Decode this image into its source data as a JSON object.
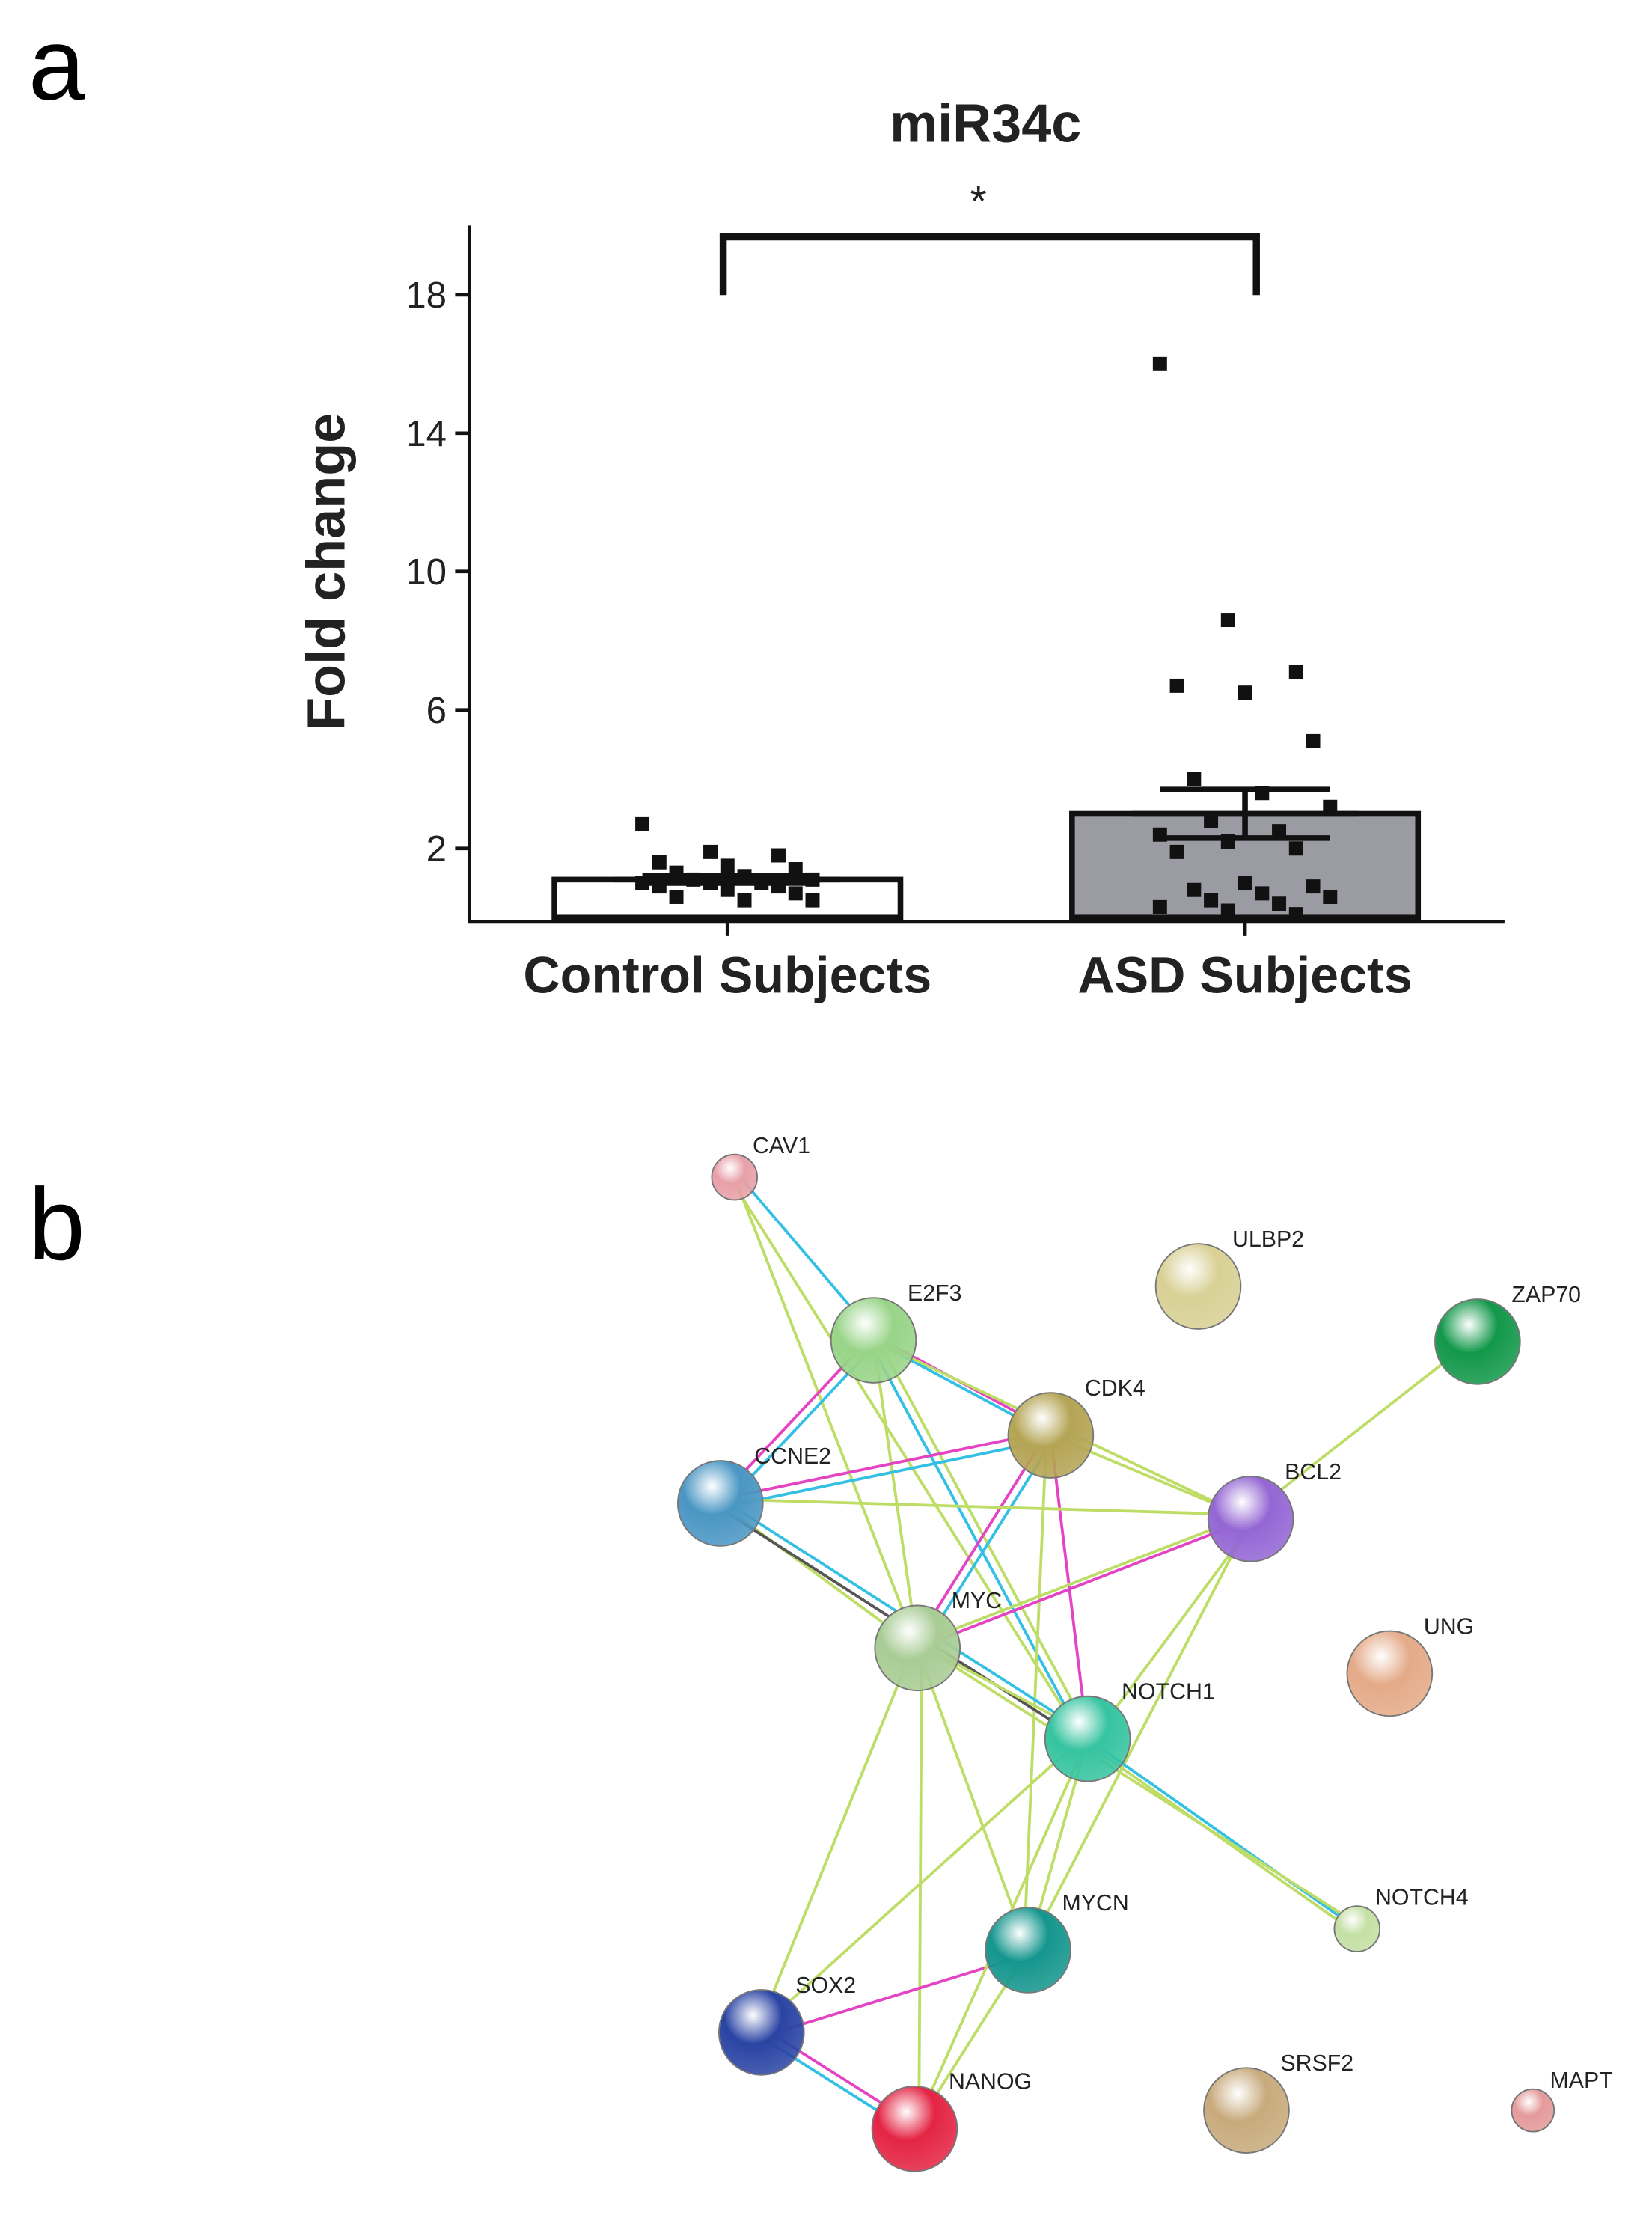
{
  "panel_labels": [
    "a",
    "b"
  ],
  "chart_data": {
    "type": "bar",
    "title": "miR34c",
    "y_label": "Fold change",
    "categories": [
      "Control Subjects",
      "ASD Subjects"
    ],
    "values": [
      1.1,
      3.0
    ],
    "errors": [
      0.1,
      0.7
    ],
    "colors": [
      "#ffffff",
      "#9b9ba3"
    ],
    "points": [
      [
        2.7,
        1.9,
        1.8,
        1.6,
        1.5,
        1.4,
        1.3,
        1.2,
        1.1,
        1.1,
        1.0,
        1.0,
        1.0,
        0.9,
        0.9,
        0.8,
        0.7,
        0.6,
        0.5,
        0.5
      ],
      [
        16,
        8.6,
        7.1,
        6.7,
        6.5,
        5.1,
        4.0,
        3.6,
        3.2,
        2.8,
        2.5,
        2.4,
        2.2,
        2.0,
        1.9,
        1.0,
        0.9,
        0.8,
        0.7,
        0.6,
        0.5,
        0.4,
        0.3,
        0.2,
        0.1
      ]
    ],
    "annotation": "*",
    "ylim": [
      0,
      20
    ],
    "yticks": [
      2,
      6,
      10,
      14,
      18
    ]
  },
  "network": {
    "nodes": [
      {
        "label": "CAV1",
        "color": "#e8a0a8"
      },
      {
        "label": "E2F3",
        "color": "#98d488"
      },
      {
        "label": "ULBP2",
        "color": "#d8d094"
      },
      {
        "label": "ZAP70",
        "color": "#12984a"
      },
      {
        "label": "CDK4",
        "color": "#b4a454"
      },
      {
        "label": "CCNE2",
        "color": "#4a96c4"
      },
      {
        "label": "BCL2",
        "color": "#9466d4"
      },
      {
        "label": "MYC",
        "color": "#a8cc94"
      },
      {
        "label": "UNG",
        "color": "#e4aa88"
      },
      {
        "label": "NOTCH1",
        "color": "#36c4a0"
      },
      {
        "label": "NOTCH4",
        "color": "#c4e0a4"
      },
      {
        "label": "MYCN",
        "color": "#14968e"
      },
      {
        "label": "SOX2",
        "color": "#2a44a4"
      },
      {
        "label": "NANOG",
        "color": "#e42444"
      },
      {
        "label": "SRSF2",
        "color": "#c8aa7c"
      },
      {
        "label": "MAPT",
        "color": "#e49a9a"
      }
    ]
  }
}
